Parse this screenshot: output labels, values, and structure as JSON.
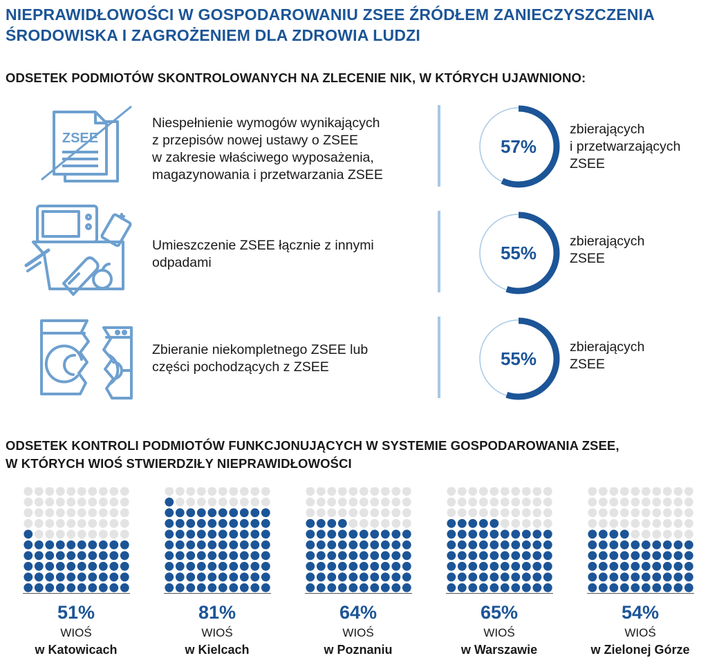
{
  "title": {
    "line1": "NIEPRAWIDŁOWOŚCI W GOSPODAROWANIU ZSEE ŹRÓDŁEM ZANIECZYSZCZENIA",
    "line2": "ŚRODOWISKA I ZAGROŻENIEM DLA ZDROWIA LUDZI"
  },
  "section1": {
    "heading": "ODSETEK PODMIOTÓW SKONTROLOWANYCH NA ZLECENIE NIK, W KTÓRYCH UJAWNIONO:",
    "items": [
      {
        "icon": "document-zsee-icon",
        "icon_text": "ZSEE",
        "text_lines": [
          "Niespełnienie wymogów wynikających",
          "z przepisów nowej ustawy o ZSEE",
          "w zakresie właściwego wyposażenia,",
          "magazynowania i przetwarzania ZSEE"
        ],
        "value": 57,
        "value_label": "57%",
        "label_lines": [
          "zbierających",
          "i przetwarzających",
          "ZSEE"
        ]
      },
      {
        "icon": "mixed-waste-bin-icon",
        "text_lines": [
          "Umieszczenie ZSEE łącznie z innymi",
          "odpadami"
        ],
        "value": 55,
        "value_label": "55%",
        "label_lines": [
          "zbierających",
          "ZSEE"
        ]
      },
      {
        "icon": "broken-washing-machine-icon",
        "text_lines": [
          "Zbieranie niekompletnego ZSEE lub",
          "części pochodzących z ZSEE"
        ],
        "value": 55,
        "value_label": "55%",
        "label_lines": [
          "zbierających",
          "ZSEE"
        ]
      }
    ]
  },
  "section2": {
    "heading_line1": "ODSETEK KONTROLI PODMIOTÓW FUNKCJONUJĄCYCH W SYSTEMIE GOSPODAROWANIA ZSEE,",
    "heading_line2": "W KTÓRYCH WIOŚ STWIERDZIŁY NIEPRAWIDŁOWOŚCI"
  },
  "chart_data": {
    "type": "waffle",
    "grid": "10x10",
    "categories": [
      "w Katowicach",
      "w Kielcach",
      "w Poznaniu",
      "w Warszawie",
      "w Zielonej Górze"
    ],
    "values": [
      51,
      81,
      64,
      65,
      54
    ],
    "value_labels": [
      "51%",
      "81%",
      "64%",
      "65%",
      "54%"
    ],
    "prefix": "WIOŚ"
  },
  "colors": {
    "primary": "#1c5597",
    "light_dot": "#e3e3e3",
    "icon_stroke": "#6ea0cf",
    "bar": "#a8c8e6",
    "ring_track": "#a8c8e6"
  }
}
